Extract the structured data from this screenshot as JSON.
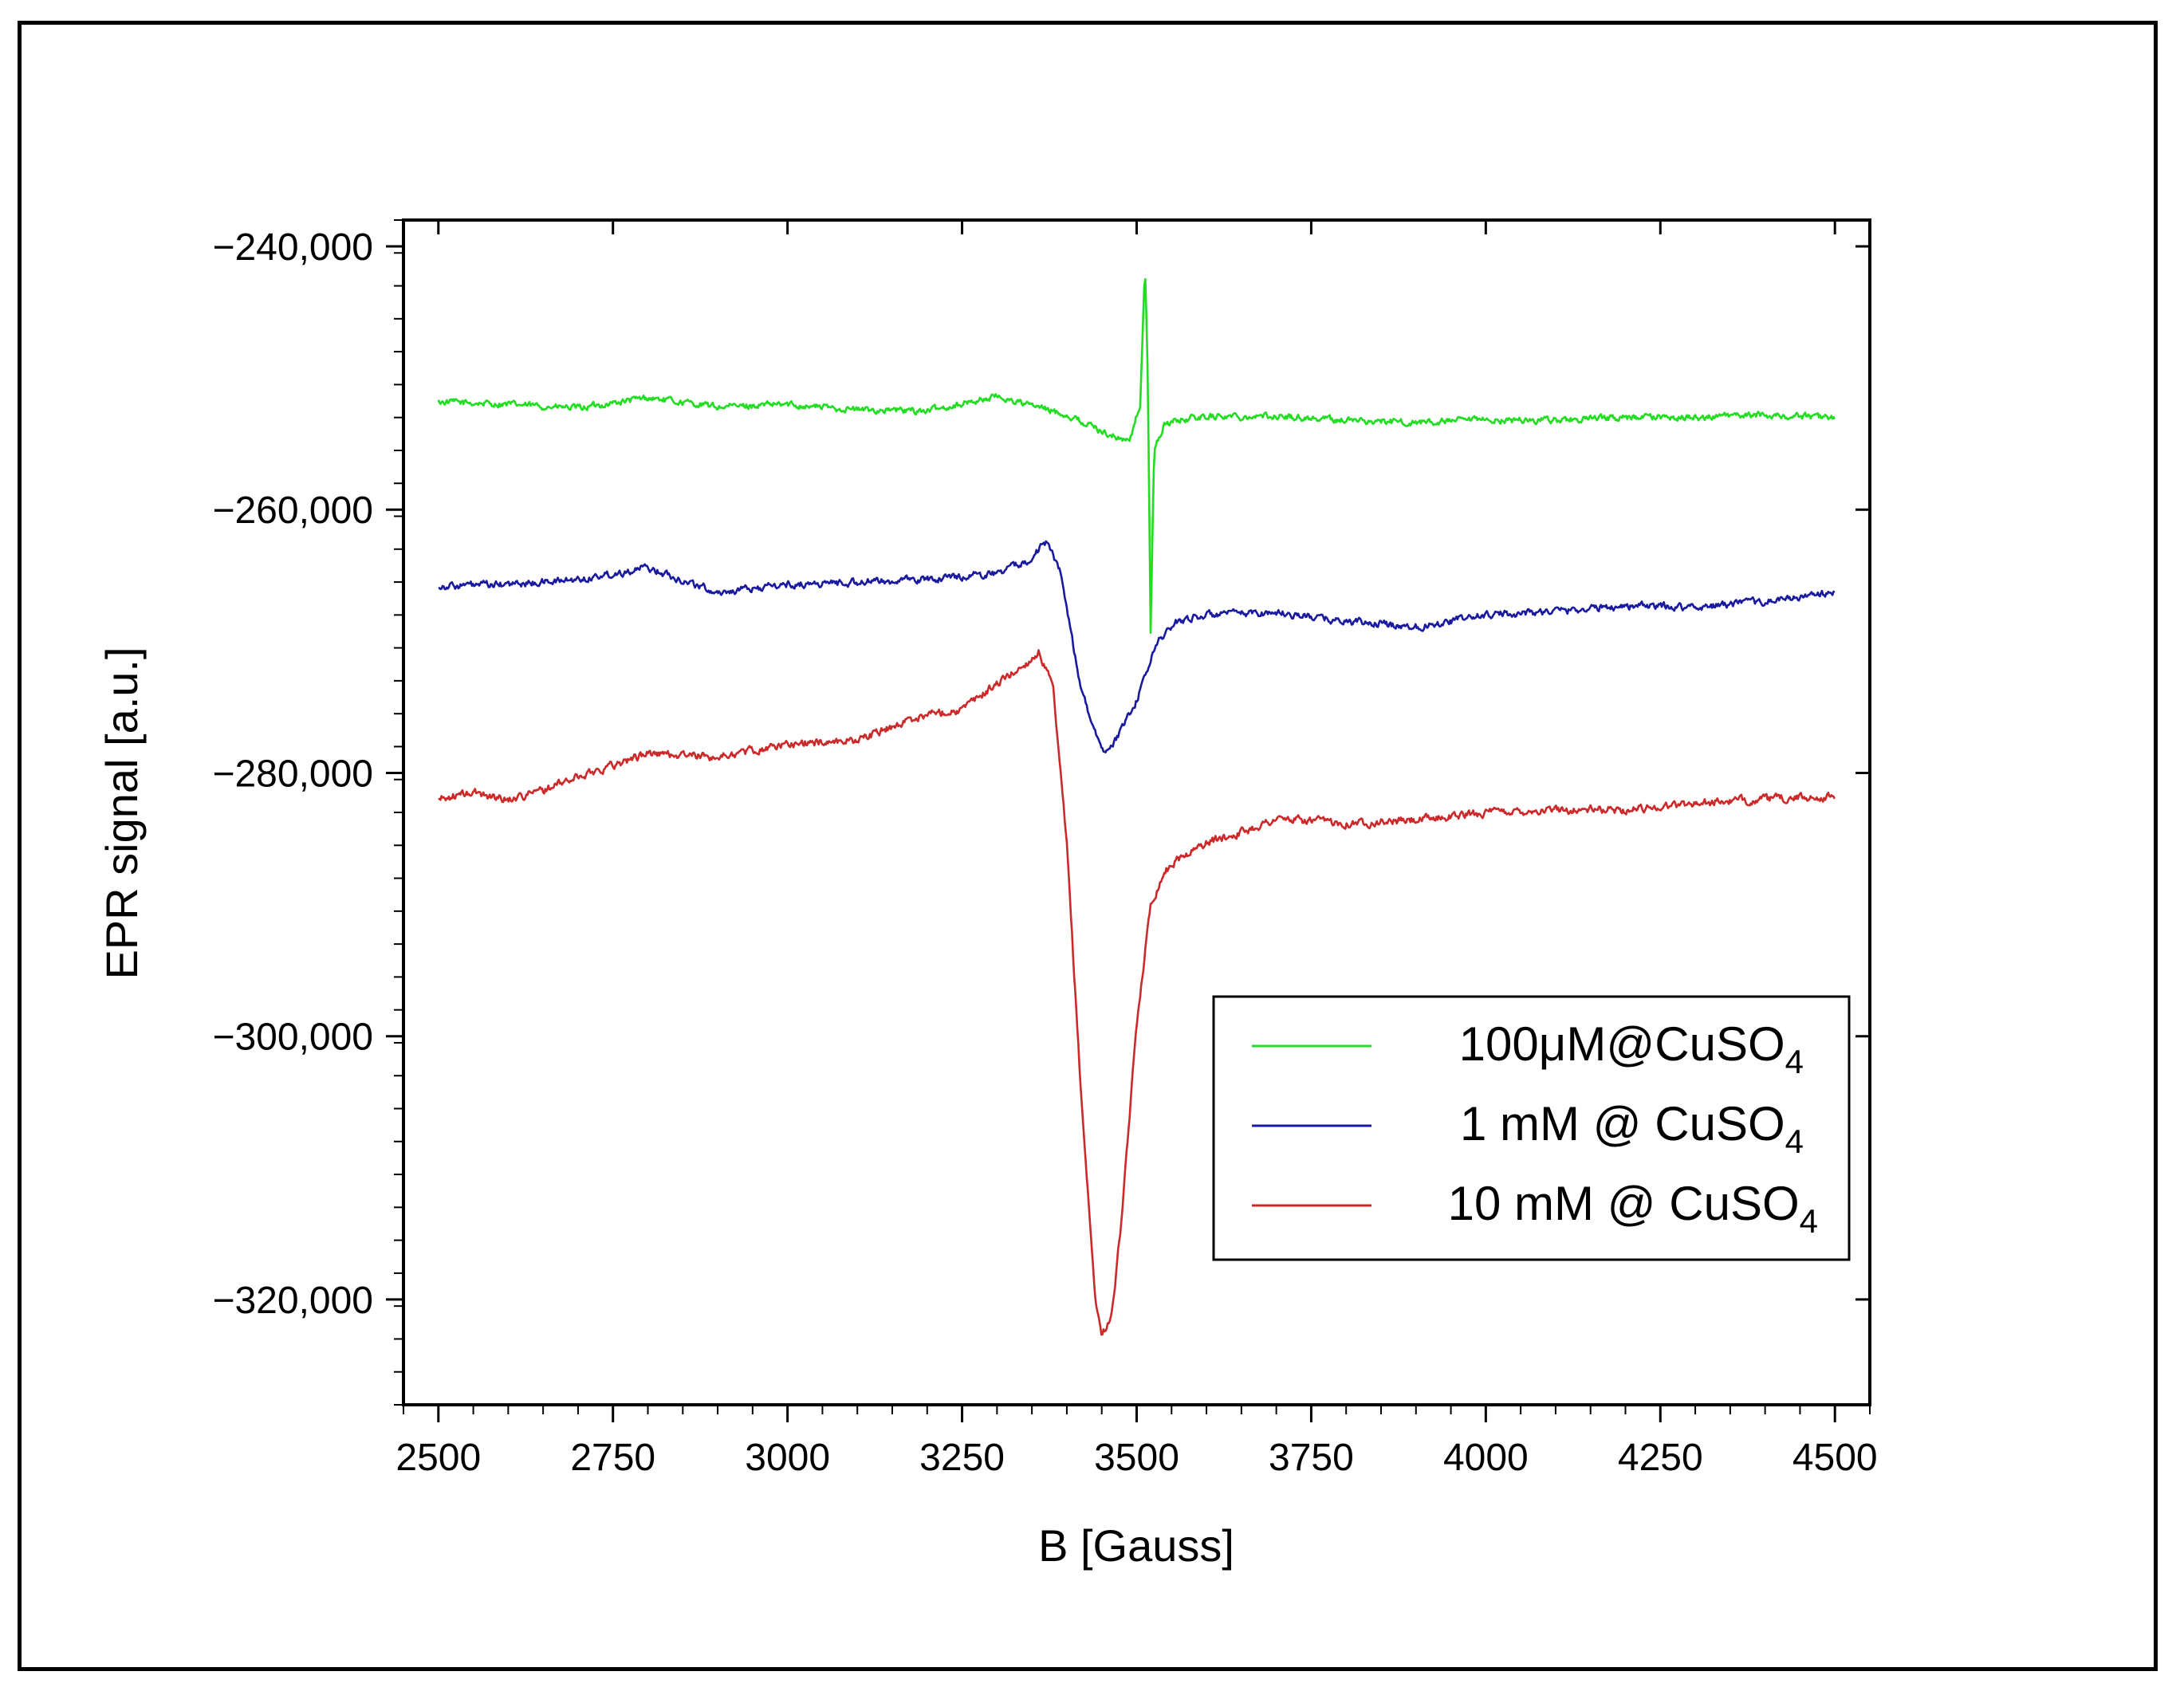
{
  "chart_data": {
    "type": "line",
    "title": "",
    "xlabel": "B [Gauss]",
    "ylabel": "EPR signal [a.u.]",
    "xlim": [
      2450,
      4550
    ],
    "ylim": [
      -328000,
      -238000
    ],
    "x_ticks": [
      2500,
      2750,
      3000,
      3250,
      3500,
      3750,
      4000,
      4250,
      4500
    ],
    "x_tick_labels": [
      "2500",
      "2750",
      "3000",
      "3250",
      "3500",
      "3750",
      "4000",
      "4250",
      "4500"
    ],
    "y_ticks": [
      -240000,
      -260000,
      -280000,
      -300000,
      -320000
    ],
    "y_tick_labels": [
      "−240,000",
      "−260,000",
      "−280,000",
      "−300,000",
      "−320,000"
    ],
    "grid": false,
    "legend_position": "bottom-right",
    "series": [
      {
        "name": "100μM@CuSO",
        "subscript": "4",
        "color": "#22dd22",
        "x": [
          2500,
          2600,
          2700,
          2800,
          2900,
          3000,
          3100,
          3200,
          3300,
          3400,
          3470,
          3490,
          3505,
          3512,
          3516,
          3520,
          3525,
          3540,
          3560,
          3600,
          3700,
          3800,
          3900,
          4000,
          4100,
          4200,
          4300,
          4400,
          4500
        ],
        "y": [
          -251800,
          -252000,
          -252300,
          -251500,
          -252200,
          -252000,
          -252400,
          -252500,
          -251400,
          -252800,
          -254500,
          -254800,
          -252000,
          -241500,
          -250000,
          -269200,
          -255500,
          -253500,
          -253200,
          -252900,
          -252900,
          -253200,
          -253400,
          -253200,
          -253200,
          -253000,
          -253000,
          -252800,
          -253000
        ],
        "noise": 450
      },
      {
        "name": "1 mM @ CuSO",
        "subscript": "4",
        "color": "#1a1aa0",
        "x": [
          2500,
          2600,
          2700,
          2800,
          2900,
          3000,
          3100,
          3200,
          3300,
          3340,
          3370,
          3390,
          3420,
          3450,
          3470,
          3500,
          3530,
          3560,
          3600,
          3700,
          3800,
          3900,
          4000,
          4100,
          4200,
          4300,
          4400,
          4500
        ],
        "y": [
          -265800,
          -265700,
          -265300,
          -264400,
          -266300,
          -265700,
          -265500,
          -265300,
          -264800,
          -264000,
          -262500,
          -264500,
          -273500,
          -278500,
          -277500,
          -274500,
          -270000,
          -268400,
          -268000,
          -267800,
          -268500,
          -268900,
          -268000,
          -267700,
          -267300,
          -267400,
          -267000,
          -266300
        ],
        "noise": 500
      },
      {
        "name": "10 mM @ CuSO",
        "subscript": "4",
        "color": "#cc2a2a",
        "x": [
          2500,
          2550,
          2600,
          2650,
          2700,
          2800,
          2900,
          3000,
          3100,
          3200,
          3250,
          3300,
          3340,
          3360,
          3380,
          3400,
          3420,
          3440,
          3450,
          3465,
          3480,
          3500,
          3520,
          3540,
          3560,
          3600,
          3650,
          3700,
          3800,
          3900,
          4000,
          4100,
          4200,
          4300,
          4400,
          4500
        ],
        "y": [
          -282000,
          -281500,
          -282000,
          -281300,
          -280300,
          -278500,
          -278800,
          -277800,
          -277500,
          -275500,
          -275200,
          -273200,
          -271800,
          -270800,
          -273500,
          -285500,
          -304000,
          -319500,
          -322800,
          -321000,
          -313000,
          -299000,
          -290000,
          -287500,
          -286500,
          -285300,
          -284500,
          -283500,
          -283800,
          -283600,
          -283000,
          -282800,
          -282800,
          -282300,
          -282000,
          -281800
        ],
        "noise": 550
      }
    ]
  }
}
